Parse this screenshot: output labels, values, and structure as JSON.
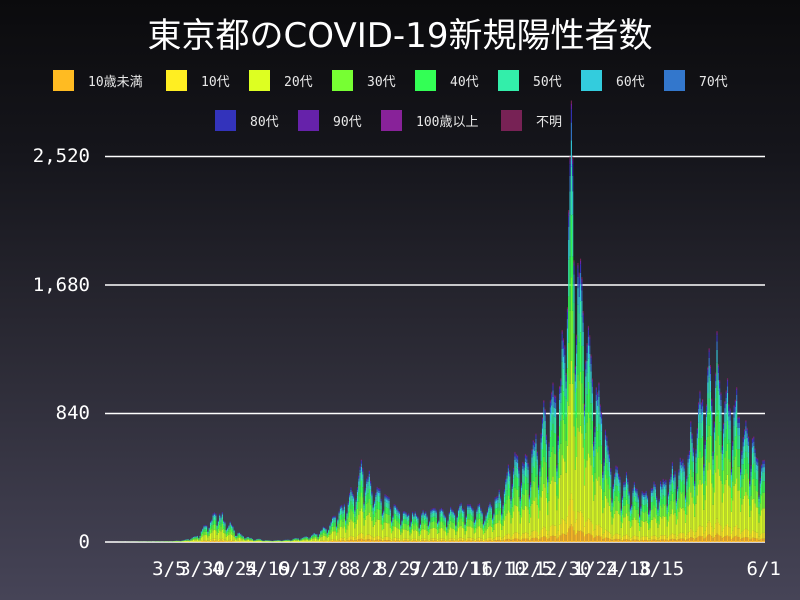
{
  "chart_data": {
    "type": "bar",
    "stacked": true,
    "title": "東京都のCOVID-19新規陽性者数",
    "xlabel": "",
    "ylabel": "",
    "ylim": [
      0,
      2520
    ],
    "yticks": [
      0,
      840,
      1680,
      2520
    ],
    "ytick_labels": [
      "0",
      "840",
      "1,680",
      "2,520"
    ],
    "grid": true,
    "legend_position": "top",
    "x_start_date": "2020-01-16",
    "x_end_date": "2021-06-01",
    "xtick_labels": [
      "3/5",
      "3/30",
      "4/24",
      "5/19",
      "6/13",
      "7/8",
      "8/2",
      "8/27",
      "9/21",
      "10/16",
      "11/10",
      "12/5",
      "12/30",
      "1/24",
      "2/18",
      "3/15",
      "6/1"
    ],
    "xtick_day_index": [
      49,
      74,
      99,
      124,
      149,
      174,
      199,
      224,
      249,
      274,
      299,
      324,
      349,
      374,
      399,
      424,
      502
    ],
    "series": [
      {
        "name": "10歳未満",
        "color": "#ffbb22",
        "share": 0.04
      },
      {
        "name": "10代",
        "color": "#ffee22",
        "share": 0.07
      },
      {
        "name": "20代",
        "color": "#ddff22",
        "share": 0.3
      },
      {
        "name": "30代",
        "color": "#77ff33",
        "share": 0.19
      },
      {
        "name": "40代",
        "color": "#33ff55",
        "share": 0.14
      },
      {
        "name": "50代",
        "color": "#33eeaa",
        "share": 0.11
      },
      {
        "name": "60代",
        "color": "#33ccdd",
        "share": 0.06
      },
      {
        "name": "70代",
        "color": "#3377cc",
        "share": 0.04
      },
      {
        "name": "80代",
        "color": "#3333bb",
        "share": 0.03
      },
      {
        "name": "90代",
        "color": "#6622aa",
        "share": 0.01
      },
      {
        "name": "100歳以上",
        "color": "#882299",
        "share": 0.003
      },
      {
        "name": "不明",
        "color": "#772255",
        "share": 0.007
      }
    ],
    "daily_total_keypoints": [
      [
        0,
        0
      ],
      [
        18,
        1
      ],
      [
        30,
        3
      ],
      [
        49,
        5
      ],
      [
        60,
        12
      ],
      [
        70,
        40
      ],
      [
        80,
        130
      ],
      [
        84,
        200
      ],
      [
        88,
        160
      ],
      [
        95,
        110
      ],
      [
        100,
        60
      ],
      [
        110,
        25
      ],
      [
        125,
        10
      ],
      [
        140,
        15
      ],
      [
        150,
        30
      ],
      [
        160,
        50
      ],
      [
        170,
        100
      ],
      [
        175,
        160
      ],
      [
        185,
        260
      ],
      [
        190,
        330
      ],
      [
        196,
        470
      ],
      [
        202,
        380
      ],
      [
        210,
        300
      ],
      [
        220,
        220
      ],
      [
        230,
        180
      ],
      [
        240,
        170
      ],
      [
        250,
        200
      ],
      [
        260,
        180
      ],
      [
        270,
        210
      ],
      [
        280,
        220
      ],
      [
        290,
        190
      ],
      [
        300,
        290
      ],
      [
        306,
        400
      ],
      [
        312,
        530
      ],
      [
        320,
        480
      ],
      [
        326,
        600
      ],
      [
        334,
        720
      ],
      [
        340,
        820
      ],
      [
        346,
        950
      ],
      [
        350,
        1340
      ],
      [
        354,
        2520
      ],
      [
        357,
        2040
      ],
      [
        360,
        1800
      ],
      [
        364,
        1500
      ],
      [
        370,
        1200
      ],
      [
        376,
        900
      ],
      [
        384,
        500
      ],
      [
        392,
        400
      ],
      [
        400,
        350
      ],
      [
        410,
        300
      ],
      [
        420,
        330
      ],
      [
        430,
        400
      ],
      [
        440,
        500
      ],
      [
        448,
        650
      ],
      [
        454,
        850
      ],
      [
        460,
        1000
      ],
      [
        466,
        1120
      ],
      [
        472,
        950
      ],
      [
        480,
        800
      ],
      [
        488,
        700
      ],
      [
        495,
        550
      ],
      [
        502,
        480
      ]
    ],
    "weekly_pattern": [
      1.0,
      0.62,
      0.78,
      1.05,
      1.12,
      1.18,
      1.1
    ]
  },
  "legend": {
    "row1": [
      {
        "label": "10歳未満",
        "color": "#ffbb22"
      },
      {
        "label": "10代",
        "color": "#ffee22"
      },
      {
        "label": "20代",
        "color": "#ddff22"
      },
      {
        "label": "30代",
        "color": "#77ff33"
      },
      {
        "label": "40代",
        "color": "#33ff55"
      },
      {
        "label": "50代",
        "color": "#33eeaa"
      },
      {
        "label": "60代",
        "color": "#33ccdd"
      },
      {
        "label": "70代",
        "color": "#3377cc"
      }
    ],
    "row2": [
      {
        "label": "80代",
        "color": "#3333bb"
      },
      {
        "label": "90代",
        "color": "#6622aa"
      },
      {
        "label": "100歳以上",
        "color": "#882299"
      },
      {
        "label": "不明",
        "color": "#772255"
      }
    ]
  }
}
